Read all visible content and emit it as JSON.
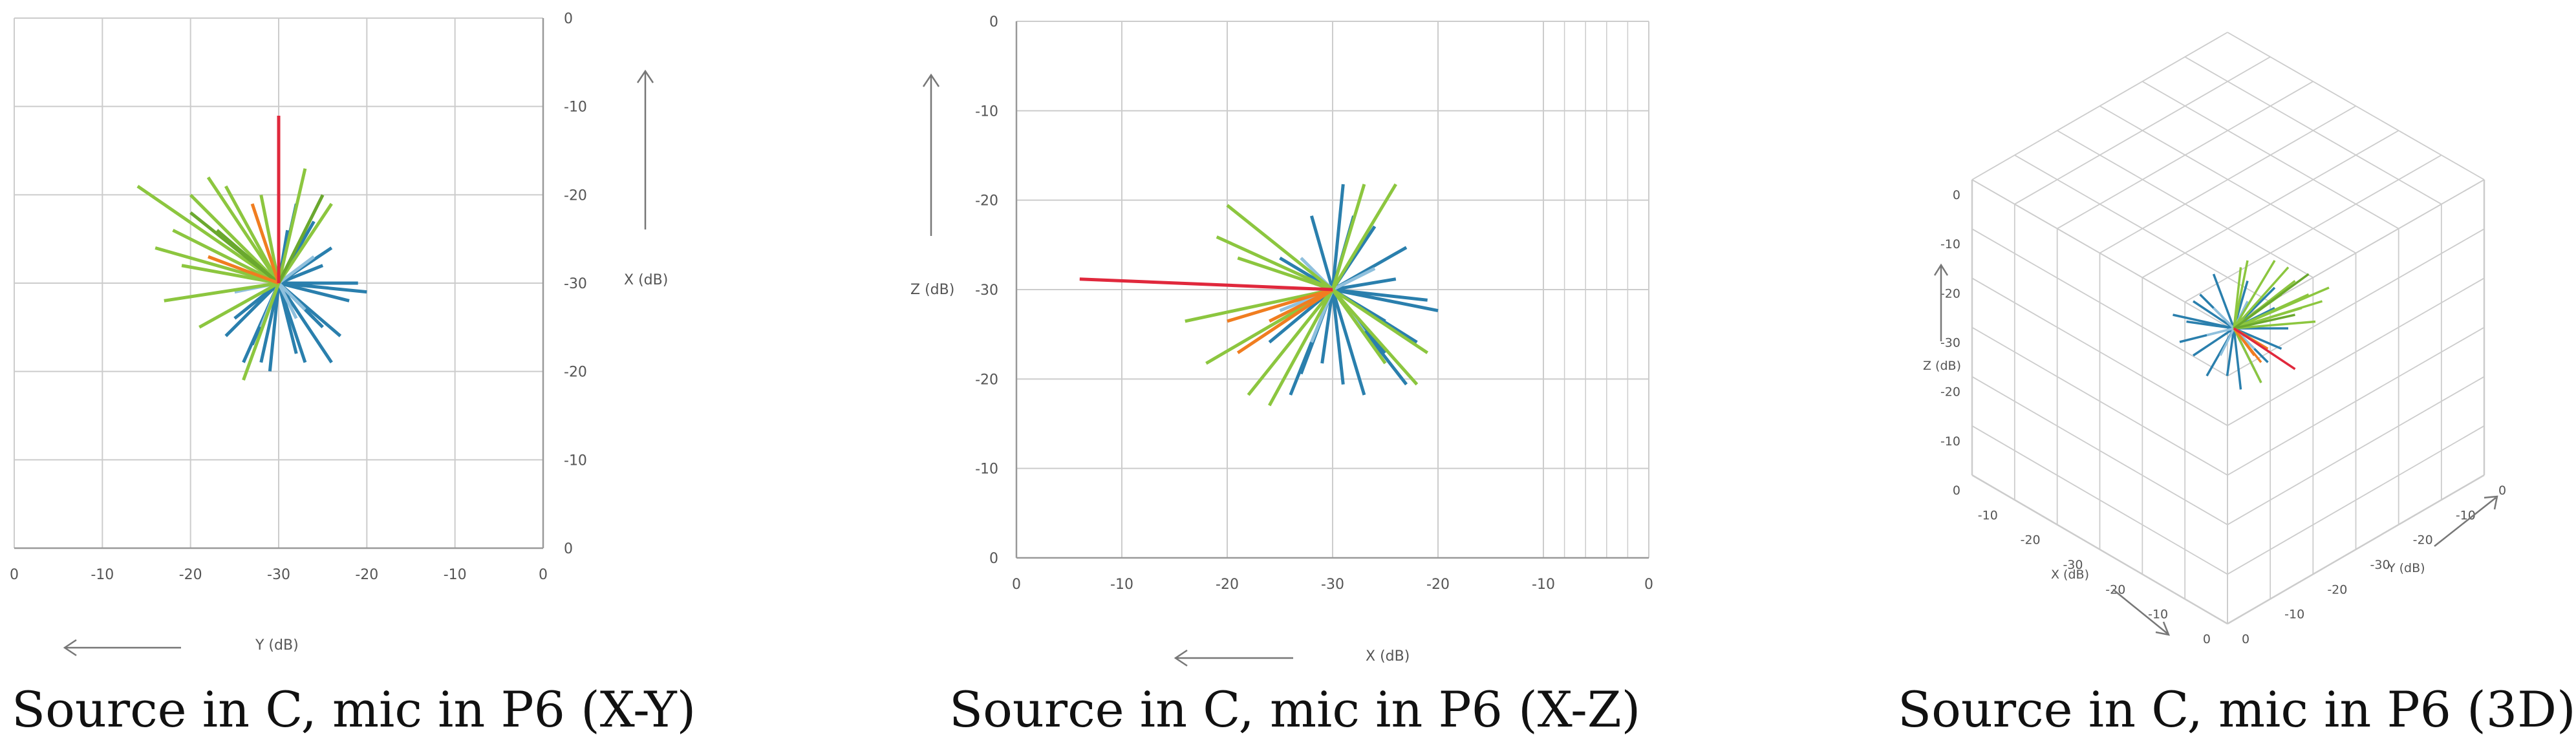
{
  "colors": {
    "grid": "#cccccc",
    "axis": "#999999",
    "ray_dark_blue": "#2a7fad",
    "ray_light_blue": "#8fc0dd",
    "ray_pale_blue": "#b6d8ee",
    "ray_green": "#8cc63f",
    "ray_dark_green": "#6aa82e",
    "ray_orange": "#f07d20",
    "ray_red": "#e0283c"
  },
  "chart_data": [
    {
      "type": "scatter",
      "title": "",
      "caption": "Source in C, mic in P6 (X-Y)",
      "xlabel": "Y (dB)",
      "ylabel": "X (dB)",
      "x_ticks": [
        "0",
        "-10",
        "-20",
        "-30",
        "-20",
        "-10",
        "0"
      ],
      "y_ticks": [
        "0",
        "-10",
        "-20",
        "-30",
        "-20",
        "-10",
        "0"
      ],
      "grid": true,
      "center": [
        0,
        0
      ],
      "note": "",
      "series": [
        {
          "color": "dark_blue",
          "vectors": [
            [
              0.6,
              -0.4
            ],
            [
              0.8,
              0.2
            ],
            [
              0.5,
              0.5
            ],
            [
              0.2,
              0.8
            ],
            [
              -0.3,
              0.7
            ],
            [
              -0.5,
              0.4
            ],
            [
              0.4,
              -0.7
            ],
            [
              0.1,
              -0.6
            ],
            [
              0.9,
              0.0
            ],
            [
              0.3,
              0.9
            ],
            [
              -0.2,
              0.9
            ],
            [
              0.7,
              0.6
            ],
            [
              -0.6,
              0.6
            ],
            [
              0.5,
              -0.2
            ],
            [
              1.0,
              0.1
            ],
            [
              0.4,
              0.4
            ],
            [
              -0.1,
              1.0
            ],
            [
              0.6,
              0.9
            ],
            [
              -0.4,
              0.9
            ],
            [
              0.2,
              -0.9
            ]
          ]
        },
        {
          "color": "light_blue",
          "vectors": [
            [
              -0.4,
              -0.4
            ],
            [
              0.3,
              0.3
            ],
            [
              -0.2,
              0.5
            ],
            [
              0.4,
              -0.3
            ],
            [
              -0.5,
              0.1
            ],
            [
              0.2,
              0.4
            ]
          ]
        },
        {
          "color": "green",
          "vectors": [
            [
              -1.6,
              -1.1
            ],
            [
              -1.2,
              -0.6
            ],
            [
              -1.0,
              -1.0
            ],
            [
              -1.4,
              -0.4
            ],
            [
              -0.8,
              -1.2
            ],
            [
              -1.3,
              0.2
            ],
            [
              -0.9,
              0.5
            ],
            [
              -1.1,
              -0.2
            ],
            [
              -0.2,
              -1.0
            ],
            [
              -0.6,
              -1.1
            ],
            [
              0.6,
              -0.9
            ],
            [
              0.3,
              -1.3
            ],
            [
              -0.4,
              1.1
            ]
          ]
        },
        {
          "color": "dark_green",
          "vectors": [
            [
              -1.0,
              -0.8
            ],
            [
              -0.7,
              -0.6
            ],
            [
              0.5,
              -1.0
            ]
          ]
        },
        {
          "color": "orange",
          "vectors": [
            [
              -0.8,
              -0.3
            ],
            [
              -0.3,
              -0.9
            ]
          ]
        },
        {
          "color": "red",
          "vectors": [
            [
              0.0,
              -1.9
            ]
          ]
        }
      ]
    },
    {
      "type": "scatter",
      "title": "",
      "caption": "Source in C, mic in P6 (X-Z)",
      "xlabel": "X (dB)",
      "ylabel": "Z (dB)",
      "x_ticks": [
        "0",
        "-10",
        "-20",
        "-30",
        "-20",
        "-10",
        "0"
      ],
      "y_ticks": [
        "0",
        "-10",
        "-20",
        "-30",
        "-20",
        "-10",
        "0"
      ],
      "grid": true,
      "center": [
        0,
        0
      ],
      "note": "",
      "series": [
        {
          "color": "dark_blue",
          "vectors": [
            [
              0.7,
              -0.4
            ],
            [
              0.9,
              0.1
            ],
            [
              0.5,
              0.6
            ],
            [
              0.1,
              0.9
            ],
            [
              -0.3,
              0.8
            ],
            [
              -0.5,
              -0.3
            ],
            [
              0.4,
              -0.6
            ],
            [
              0.2,
              -0.7
            ],
            [
              1.0,
              0.2
            ],
            [
              0.3,
              1.0
            ],
            [
              -0.1,
              0.7
            ],
            [
              0.8,
              0.5
            ],
            [
              -0.6,
              0.5
            ],
            [
              0.6,
              -0.1
            ],
            [
              0.1,
              -1.0
            ],
            [
              0.5,
              0.3
            ],
            [
              -0.4,
              1.0
            ],
            [
              0.7,
              0.9
            ],
            [
              -0.2,
              -0.7
            ]
          ]
        },
        {
          "color": "light_blue",
          "vectors": [
            [
              -0.3,
              -0.3
            ],
            [
              0.3,
              0.4
            ],
            [
              -0.2,
              0.5
            ],
            [
              0.4,
              -0.2
            ],
            [
              -0.5,
              0.2
            ]
          ]
        },
        {
          "color": "green",
          "vectors": [
            [
              -1.0,
              -0.8
            ],
            [
              -1.2,
              0.7
            ],
            [
              -0.9,
              -0.3
            ],
            [
              -1.4,
              0.3
            ],
            [
              -0.8,
              1.0
            ],
            [
              0.6,
              -1.0
            ],
            [
              0.5,
              0.7
            ],
            [
              0.9,
              0.6
            ],
            [
              -0.6,
              1.1
            ],
            [
              0.3,
              -1.0
            ],
            [
              -1.1,
              -0.5
            ],
            [
              0.8,
              0.9
            ]
          ]
        },
        {
          "color": "orange",
          "vectors": [
            [
              -0.9,
              0.6
            ],
            [
              -0.6,
              0.3
            ],
            [
              -1.0,
              0.3
            ]
          ]
        },
        {
          "color": "red",
          "vectors": [
            [
              -2.4,
              -0.1
            ]
          ]
        }
      ]
    },
    {
      "type": "scatter",
      "title": "",
      "caption": "Source in C, mic in P6 (3D)",
      "xlabel": "X (dB)",
      "ylabel": "Y (dB)",
      "zlabel": "Z (dB)",
      "x_ticks": [
        "-10",
        "-20",
        "-30",
        "-20",
        "-10",
        "0"
      ],
      "y_ticks": [
        "0",
        "-10",
        "-20",
        "-30",
        "-20",
        "-10",
        "0"
      ],
      "z_ticks": [
        "0",
        "-10",
        "-20",
        "-30",
        "-20",
        "-10",
        "0"
      ],
      "grid": true,
      "center": [
        0,
        0
      ],
      "note": "",
      "series": [
        {
          "color": "dark_blue",
          "vectors": [
            [
              0.6,
              -0.3
            ],
            [
              0.7,
              0.3
            ],
            [
              0.3,
              0.6
            ],
            [
              -0.1,
              0.7
            ],
            [
              -0.6,
              0.4
            ],
            [
              -0.7,
              -0.1
            ],
            [
              -0.5,
              -0.5
            ],
            [
              0.2,
              -0.7
            ],
            [
              0.8,
              0.0
            ],
            [
              0.4,
              0.8
            ],
            [
              -0.4,
              0.7
            ],
            [
              -0.8,
              0.2
            ],
            [
              -0.3,
              -0.8
            ],
            [
              0.5,
              0.5
            ],
            [
              -0.6,
              -0.4
            ],
            [
              0.1,
              0.9
            ],
            [
              -0.9,
              -0.2
            ],
            [
              0.6,
              -0.6
            ]
          ]
        },
        {
          "color": "light_blue",
          "vectors": [
            [
              -0.3,
              -0.3
            ],
            [
              0.3,
              0.3
            ],
            [
              -0.2,
              0.4
            ],
            [
              0.2,
              -0.4
            ],
            [
              -0.4,
              0.1
            ]
          ]
        },
        {
          "color": "green",
          "vectors": [
            [
              1.0,
              -0.3
            ],
            [
              1.1,
              -0.5
            ],
            [
              0.9,
              -0.7
            ],
            [
              1.3,
              -0.4
            ],
            [
              0.8,
              -0.9
            ],
            [
              1.2,
              -0.1
            ],
            [
              0.6,
              -1.0
            ],
            [
              1.4,
              -0.6
            ],
            [
              0.7,
              -0.5
            ],
            [
              0.2,
              -1.0
            ],
            [
              0.4,
              0.8
            ],
            [
              0.1,
              -0.9
            ]
          ]
        },
        {
          "color": "dark_green",
          "vectors": [
            [
              1.1,
              -0.8
            ],
            [
              0.9,
              -0.2
            ]
          ]
        },
        {
          "color": "orange",
          "vectors": [
            [
              0.4,
              0.5
            ],
            [
              0.3,
              0.4
            ],
            [
              0.5,
              0.3
            ]
          ]
        },
        {
          "color": "red",
          "vectors": [
            [
              0.9,
              0.6
            ]
          ]
        }
      ]
    }
  ]
}
